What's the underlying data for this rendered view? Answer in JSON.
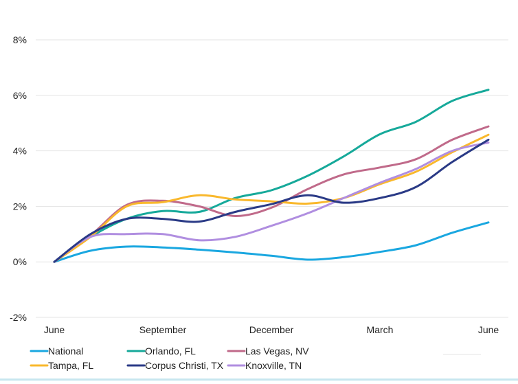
{
  "chart_data": {
    "type": "line",
    "title": "",
    "xlabel": "",
    "ylabel": "",
    "x": [
      "Jun",
      "Jul",
      "Aug",
      "Sep",
      "Oct",
      "Nov",
      "Dec",
      "Jan",
      "Feb",
      "Mar",
      "Apr",
      "May",
      "Jun"
    ],
    "x_tick_labels": [
      "June",
      "September",
      "December",
      "March",
      "June"
    ],
    "x_tick_index": [
      0,
      3,
      6,
      9,
      12
    ],
    "y_ticks": [
      -2,
      0,
      2,
      4,
      6,
      8
    ],
    "y_tick_labels": [
      "-2%",
      "0%",
      "2%",
      "4%",
      "6%",
      "8%"
    ],
    "ylim": [
      -2,
      8
    ],
    "grid": "horizontal",
    "legend_position": "bottom",
    "series": [
      {
        "name": "National",
        "color": "#1aa7e0",
        "values": [
          0,
          0.4,
          0.55,
          0.52,
          0.44,
          0.34,
          0.22,
          0.08,
          0.17,
          0.36,
          0.6,
          1.05,
          1.42
        ]
      },
      {
        "name": "Orlando, FL",
        "color": "#16a99a",
        "values": [
          0,
          0.9,
          1.55,
          1.83,
          1.8,
          2.3,
          2.58,
          3.1,
          3.8,
          4.6,
          5.05,
          5.8,
          6.2
        ]
      },
      {
        "name": "Las Vegas, NV",
        "color": "#c06a8a",
        "values": [
          0,
          0.95,
          2.05,
          2.2,
          2.0,
          1.65,
          1.95,
          2.62,
          3.15,
          3.4,
          3.7,
          4.4,
          4.88
        ]
      },
      {
        "name": "Tampa, FL",
        "color": "#f9b82c",
        "values": [
          0,
          0.9,
          2.0,
          2.15,
          2.4,
          2.25,
          2.18,
          2.1,
          2.3,
          2.8,
          3.25,
          3.95,
          4.58
        ]
      },
      {
        "name": "Corpus Christi, TX",
        "color": "#2a3a86",
        "values": [
          0,
          1.0,
          1.55,
          1.55,
          1.45,
          1.8,
          2.08,
          2.4,
          2.13,
          2.3,
          2.7,
          3.6,
          4.4
        ]
      },
      {
        "name": "Knoxville, TN",
        "color": "#b08ee0",
        "values": [
          0,
          0.9,
          1.0,
          1.0,
          0.78,
          0.9,
          1.3,
          1.75,
          2.3,
          2.85,
          3.35,
          4.0,
          4.3
        ]
      }
    ]
  }
}
